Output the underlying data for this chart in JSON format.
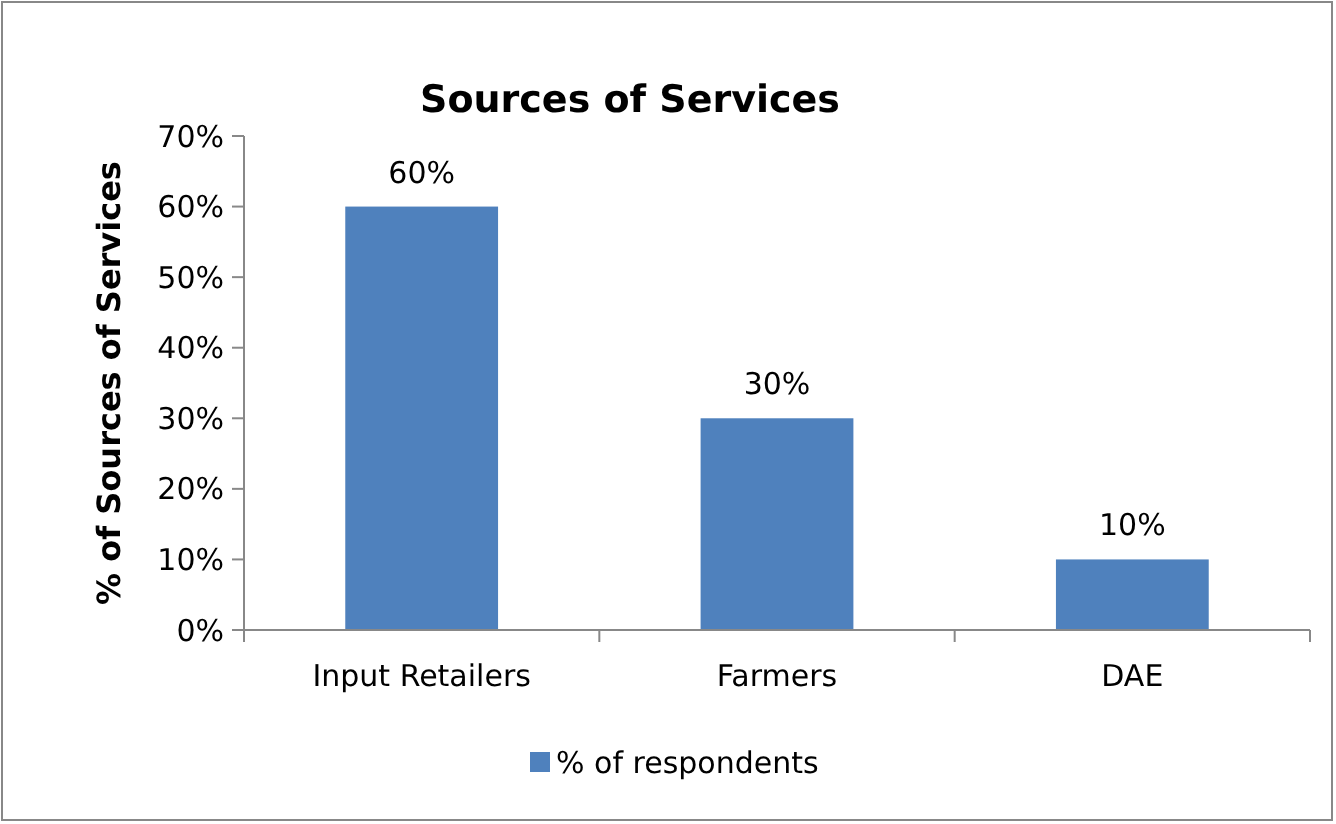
{
  "chart_data": {
    "type": "bar",
    "title": "Sources of Services",
    "ylabel": "% of Sources of Services",
    "categories": [
      "Input Retailers",
      "Farmers",
      "DAE"
    ],
    "series": [
      {
        "name": "% of respondents",
        "color": "#4f81bd",
        "values": [
          60,
          30,
          10
        ],
        "value_labels": [
          "60%",
          "30%",
          "10%"
        ]
      }
    ],
    "ylim": [
      0,
      70
    ],
    "yticks": [
      {
        "value": 0,
        "label": "0%"
      },
      {
        "value": 10,
        "label": "10%"
      },
      {
        "value": 20,
        "label": "20%"
      },
      {
        "value": 30,
        "label": "30%"
      },
      {
        "value": 40,
        "label": "40%"
      },
      {
        "value": 50,
        "label": "50%"
      },
      {
        "value": 60,
        "label": "60%"
      },
      {
        "value": 70,
        "label": "70%"
      }
    ],
    "grid": false,
    "legend": "bottom"
  }
}
